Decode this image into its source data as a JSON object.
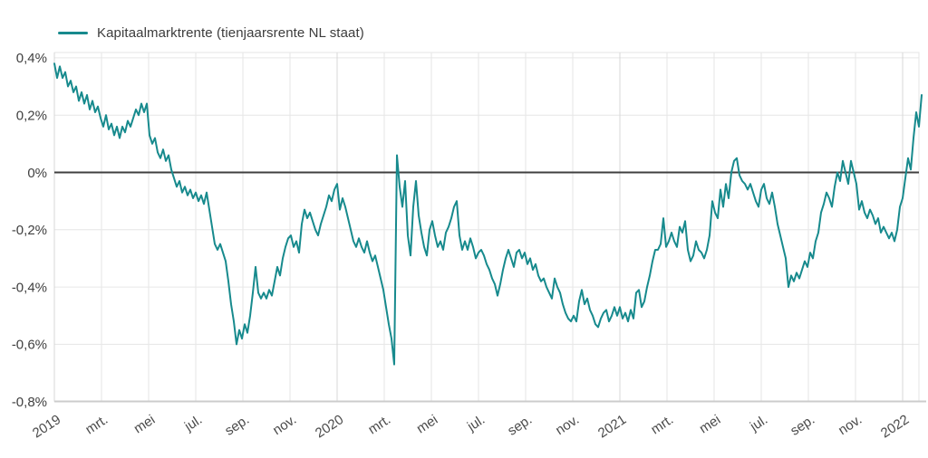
{
  "page": {
    "background": "#ffffff"
  },
  "legend": {
    "label": "Kapitaalmarktrente (tienjaarsrente NL staat)",
    "swatch_color": "#178a8d"
  },
  "chart_data": {
    "type": "line",
    "title": "",
    "xlabel": "",
    "ylabel": "",
    "unit": "%",
    "decimal_style": "comma",
    "grid": true,
    "zero_line": true,
    "legend_position": "top-left",
    "ylim": [
      -0.8,
      0.4
    ],
    "xlim_months": [
      0,
      36.85
    ],
    "y_ticks": [
      {
        "label": "0,4%",
        "value": 0.4
      },
      {
        "label": "0,2%",
        "value": 0.2
      },
      {
        "label": "0%",
        "value": 0.0
      },
      {
        "label": "-0,2%",
        "value": -0.2
      },
      {
        "label": "-0,4%",
        "value": -0.4
      },
      {
        "label": "-0,6%",
        "value": -0.6
      },
      {
        "label": "-0,8%",
        "value": -0.8
      }
    ],
    "x_ticks": [
      {
        "label": "2019",
        "month": 0,
        "is_year": true
      },
      {
        "label": "mrt.",
        "month": 2,
        "is_year": false
      },
      {
        "label": "mei",
        "month": 4,
        "is_year": false
      },
      {
        "label": "jul.",
        "month": 6,
        "is_year": false
      },
      {
        "label": "sep.",
        "month": 8,
        "is_year": false
      },
      {
        "label": "nov.",
        "month": 10,
        "is_year": false
      },
      {
        "label": "2020",
        "month": 12,
        "is_year": true
      },
      {
        "label": "mrt.",
        "month": 14,
        "is_year": false
      },
      {
        "label": "mei",
        "month": 16,
        "is_year": false
      },
      {
        "label": "jul.",
        "month": 18,
        "is_year": false
      },
      {
        "label": "sep.",
        "month": 20,
        "is_year": false
      },
      {
        "label": "nov.",
        "month": 22,
        "is_year": false
      },
      {
        "label": "2021",
        "month": 24,
        "is_year": true
      },
      {
        "label": "mrt.",
        "month": 26,
        "is_year": false
      },
      {
        "label": "mei",
        "month": 28,
        "is_year": false
      },
      {
        "label": "jul.",
        "month": 30,
        "is_year": false
      },
      {
        "label": "sep.",
        "month": 32,
        "is_year": false
      },
      {
        "label": "nov.",
        "month": 34,
        "is_year": false
      },
      {
        "label": "2022",
        "month": 36,
        "is_year": true
      }
    ],
    "colors": {
      "line": "#178a8d",
      "grid": "#e6e6e6",
      "year_grid": "#d7d7d7",
      "plot_border": "#e6e6e6",
      "axis_bottom": "#cccccc",
      "zero_line": "#3f3f3f",
      "tick_text": "#404040",
      "x_tick_text": "#4a4a4a"
    },
    "series": [
      {
        "name": "Kapitaalmarktrente (tienjaarsrente NL staat)",
        "unit": "%",
        "start": "2019-01",
        "step_months": 0.11538,
        "values": [
          0.38,
          0.33,
          0.37,
          0.33,
          0.35,
          0.3,
          0.32,
          0.28,
          0.3,
          0.25,
          0.28,
          0.24,
          0.27,
          0.22,
          0.25,
          0.21,
          0.23,
          0.19,
          0.16,
          0.2,
          0.15,
          0.17,
          0.13,
          0.16,
          0.12,
          0.16,
          0.14,
          0.18,
          0.16,
          0.19,
          0.22,
          0.2,
          0.24,
          0.21,
          0.24,
          0.13,
          0.1,
          0.12,
          0.07,
          0.05,
          0.08,
          0.04,
          0.06,
          0.01,
          -0.02,
          -0.05,
          -0.03,
          -0.07,
          -0.05,
          -0.08,
          -0.06,
          -0.09,
          -0.07,
          -0.1,
          -0.08,
          -0.11,
          -0.07,
          -0.13,
          -0.19,
          -0.25,
          -0.27,
          -0.25,
          -0.28,
          -0.31,
          -0.38,
          -0.46,
          -0.52,
          -0.6,
          -0.55,
          -0.58,
          -0.53,
          -0.56,
          -0.5,
          -0.42,
          -0.33,
          -0.42,
          -0.44,
          -0.42,
          -0.44,
          -0.41,
          -0.43,
          -0.38,
          -0.33,
          -0.36,
          -0.3,
          -0.26,
          -0.23,
          -0.22,
          -0.26,
          -0.24,
          -0.28,
          -0.18,
          -0.13,
          -0.16,
          -0.14,
          -0.17,
          -0.2,
          -0.22,
          -0.18,
          -0.15,
          -0.12,
          -0.08,
          -0.1,
          -0.06,
          -0.04,
          -0.13,
          -0.09,
          -0.12,
          -0.16,
          -0.2,
          -0.24,
          -0.26,
          -0.23,
          -0.26,
          -0.28,
          -0.24,
          -0.28,
          -0.31,
          -0.29,
          -0.33,
          -0.37,
          -0.41,
          -0.47,
          -0.53,
          -0.58,
          -0.67,
          0.06,
          -0.05,
          -0.12,
          -0.03,
          -0.22,
          -0.29,
          -0.12,
          -0.03,
          -0.15,
          -0.21,
          -0.26,
          -0.29,
          -0.2,
          -0.17,
          -0.22,
          -0.26,
          -0.24,
          -0.27,
          -0.21,
          -0.19,
          -0.16,
          -0.12,
          -0.1,
          -0.22,
          -0.27,
          -0.24,
          -0.27,
          -0.23,
          -0.26,
          -0.3,
          -0.28,
          -0.27,
          -0.29,
          -0.32,
          -0.34,
          -0.37,
          -0.39,
          -0.43,
          -0.39,
          -0.34,
          -0.3,
          -0.27,
          -0.3,
          -0.33,
          -0.28,
          -0.27,
          -0.3,
          -0.28,
          -0.32,
          -0.3,
          -0.34,
          -0.32,
          -0.36,
          -0.38,
          -0.37,
          -0.4,
          -0.42,
          -0.44,
          -0.37,
          -0.4,
          -0.42,
          -0.46,
          -0.49,
          -0.51,
          -0.52,
          -0.5,
          -0.52,
          -0.45,
          -0.41,
          -0.46,
          -0.44,
          -0.48,
          -0.5,
          -0.53,
          -0.54,
          -0.51,
          -0.49,
          -0.48,
          -0.52,
          -0.5,
          -0.47,
          -0.5,
          -0.47,
          -0.51,
          -0.49,
          -0.52,
          -0.48,
          -0.51,
          -0.42,
          -0.41,
          -0.47,
          -0.45,
          -0.4,
          -0.36,
          -0.31,
          -0.27,
          -0.27,
          -0.25,
          -0.16,
          -0.26,
          -0.24,
          -0.21,
          -0.24,
          -0.26,
          -0.19,
          -0.21,
          -0.17,
          -0.27,
          -0.31,
          -0.29,
          -0.24,
          -0.27,
          -0.28,
          -0.3,
          -0.27,
          -0.22,
          -0.1,
          -0.14,
          -0.16,
          -0.06,
          -0.12,
          -0.04,
          -0.09,
          0.0,
          0.04,
          0.05,
          -0.01,
          -0.03,
          -0.04,
          -0.06,
          -0.04,
          -0.07,
          -0.1,
          -0.12,
          -0.06,
          -0.04,
          -0.09,
          -0.11,
          -0.07,
          -0.12,
          -0.18,
          -0.22,
          -0.26,
          -0.3,
          -0.4,
          -0.36,
          -0.38,
          -0.35,
          -0.37,
          -0.34,
          -0.31,
          -0.33,
          -0.28,
          -0.3,
          -0.24,
          -0.21,
          -0.14,
          -0.11,
          -0.07,
          -0.09,
          -0.12,
          -0.05,
          0.0,
          -0.03,
          0.04,
          0.0,
          -0.04,
          0.04,
          0.0,
          -0.04,
          -0.13,
          -0.1,
          -0.14,
          -0.16,
          -0.13,
          -0.15,
          -0.18,
          -0.16,
          -0.21,
          -0.19,
          -0.21,
          -0.23,
          -0.21,
          -0.24,
          -0.2,
          -0.12,
          -0.09,
          -0.02,
          0.05,
          0.01,
          0.12,
          0.21,
          0.16,
          0.27
        ]
      }
    ]
  }
}
